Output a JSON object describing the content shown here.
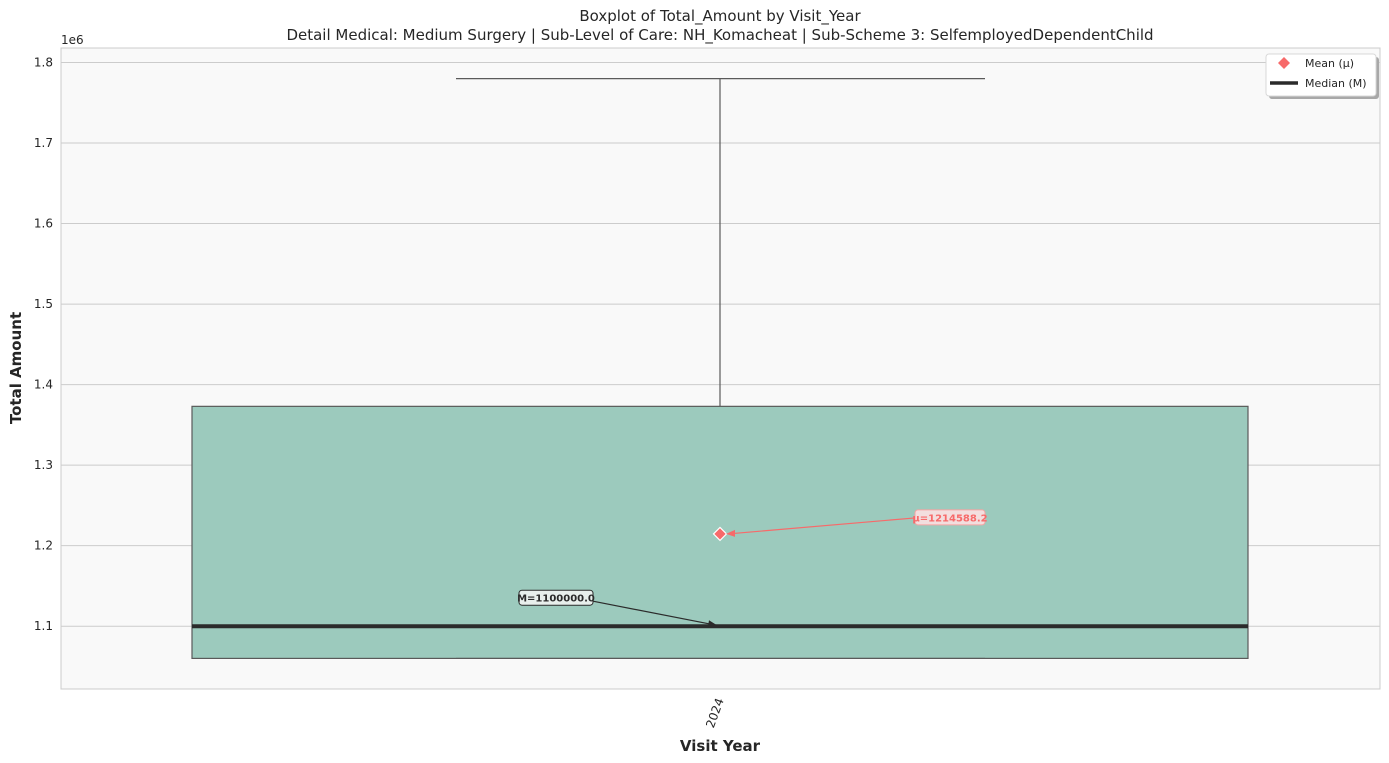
{
  "chart_data": {
    "type": "box",
    "title": "Boxplot of Total_Amount by Visit_Year",
    "subtitle": "Detail Medical: Medium Surgery | Sub-Level of Care: NH_Komacheat | Sub-Scheme 3: SelfemployedDependentChild",
    "xlabel": "Visit Year",
    "ylabel": "Total Amount",
    "y_offset_label": "1e6",
    "categories": [
      "2024"
    ],
    "boxes": [
      {
        "category": "2024",
        "whisker_low": 1060000,
        "q1": 1060000,
        "median": 1100000,
        "q3": 1373000,
        "whisker_high": 1780000,
        "mean": 1214588.2
      }
    ],
    "ylim": [
      1022000,
      1818000
    ],
    "y_ticks": [
      1100000,
      1200000,
      1300000,
      1400000,
      1500000,
      1600000,
      1700000,
      1800000
    ],
    "y_tick_labels": [
      "1.1",
      "1.2",
      "1.3",
      "1.4",
      "1.5",
      "1.6",
      "1.7",
      "1.8"
    ],
    "grid": true,
    "legend_position": "top-right",
    "legend": [
      {
        "label": "Mean (μ)",
        "marker": "diamond",
        "color": "#f76a6a"
      },
      {
        "label": "Median (M)",
        "marker": "line",
        "color": "#2b2b2b"
      }
    ],
    "annotations": {
      "mean_label": "μ=1214588.2",
      "median_label": "M=1100000.0"
    },
    "colors": {
      "box_fill": "#9ccabd",
      "box_edge": "#5a5a5a",
      "median": "#2b2b2b",
      "mean": "#f76a6a",
      "plot_bg": "#f9f9f9",
      "grid": "#cccccc"
    }
  }
}
